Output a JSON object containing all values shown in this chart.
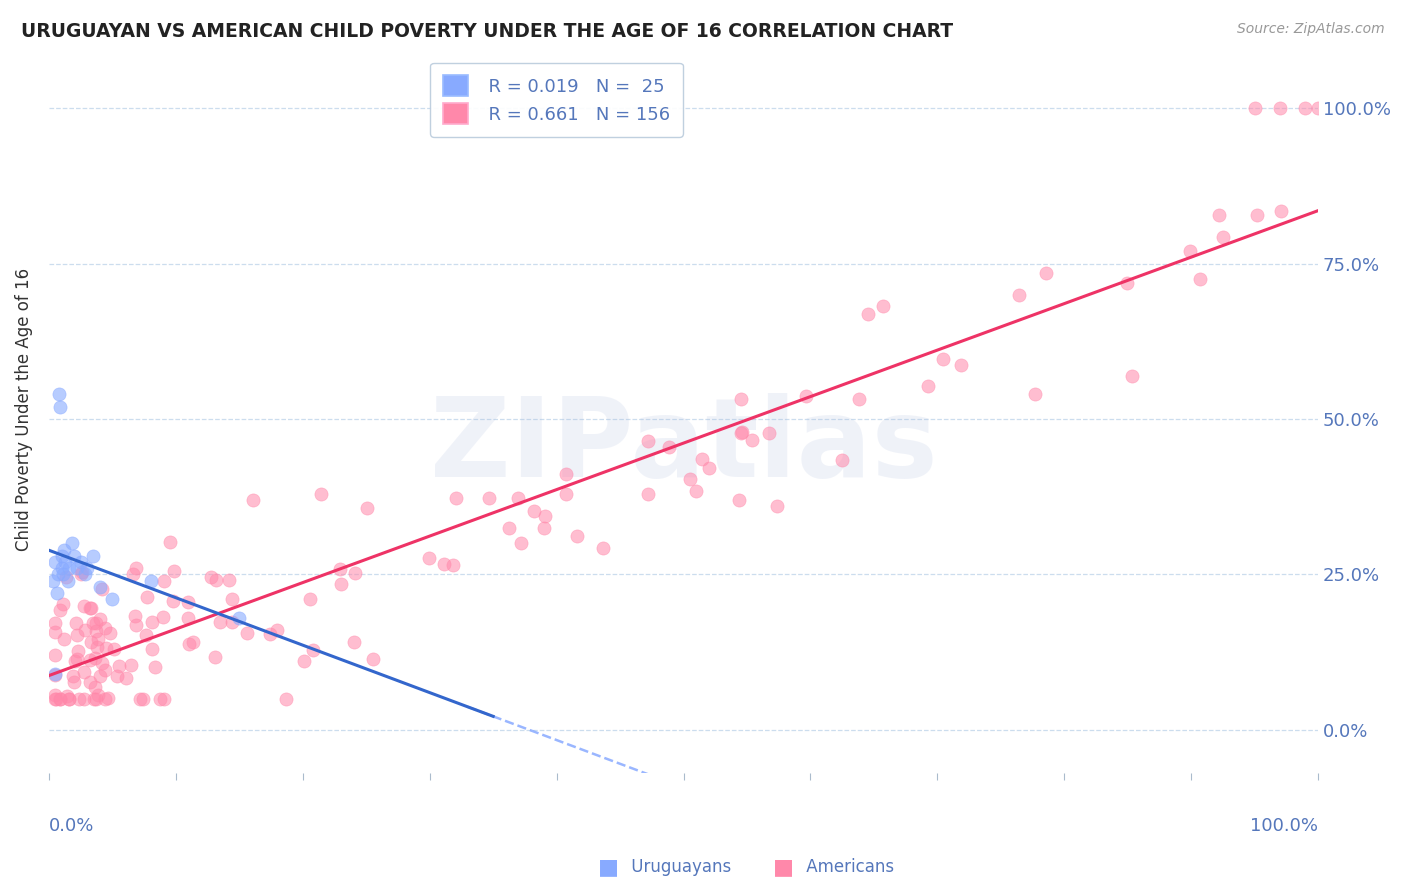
{
  "title": "URUGUAYAN VS AMERICAN CHILD POVERTY UNDER THE AGE OF 16 CORRELATION CHART",
  "source": "Source: ZipAtlas.com",
  "ylabel": "Child Poverty Under the Age of 16",
  "legend_uruguayans": "Uruguayans",
  "legend_americans": "Americans",
  "legend_r_uru": "R = 0.019",
  "legend_n_uru": "N =  25",
  "legend_r_ame": "R = 0.661",
  "legend_n_ame": "N = 156",
  "ytick_labels": [
    "0.0%",
    "25.0%",
    "50.0%",
    "75.0%",
    "100.0%"
  ],
  "ytick_values": [
    0.0,
    0.25,
    0.5,
    0.75,
    1.0
  ],
  "color_blue": "#88AAFF",
  "color_pink": "#FF88AA",
  "color_trendline_blue": "#3366CC",
  "color_trendline_pink": "#EE3366",
  "color_axis_label": "#5577BB",
  "color_grid": "#CCDDEE",
  "background_color": "#FFFFFF",
  "watermark_text": "ZIPatlas",
  "watermark_color": "#AABBDD",
  "title_color": "#222222",
  "source_color": "#999999",
  "ylabel_color": "#333333"
}
